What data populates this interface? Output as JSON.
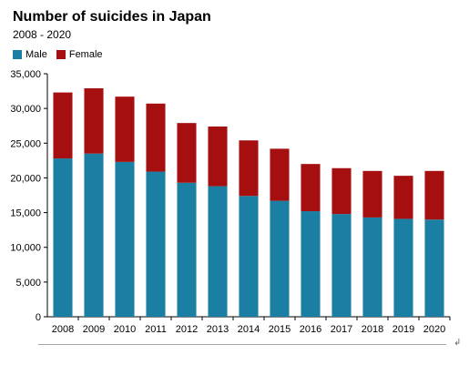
{
  "chart_data": {
    "type": "bar",
    "stacked": true,
    "title": "Number of suicides in Japan",
    "subtitle": "2008 - 2020",
    "categories": [
      "2008",
      "2009",
      "2010",
      "2011",
      "2012",
      "2013",
      "2014",
      "2015",
      "2016",
      "2017",
      "2018",
      "2019",
      "2020"
    ],
    "series": [
      {
        "name": "Male",
        "color": "#1a7fa3",
        "values": [
          22800,
          23500,
          22300,
          20900,
          19300,
          18800,
          17400,
          16700,
          15200,
          14800,
          14300,
          14100,
          14000
        ]
      },
      {
        "name": "Female",
        "color": "#a50f0f",
        "values": [
          9500,
          9400,
          9400,
          9800,
          8600,
          8600,
          8000,
          7500,
          6800,
          6600,
          6700,
          6200,
          7000
        ]
      }
    ],
    "ylim": [
      0,
      35000
    ],
    "yticks": [
      0,
      5000,
      10000,
      15000,
      20000,
      25000,
      30000,
      35000
    ],
    "ytick_labels": [
      "0",
      "5,000",
      "10,000",
      "15,000",
      "20,000",
      "25,000",
      "30,000",
      "35,000"
    ],
    "grid": false,
    "legend_position": "top-left"
  }
}
